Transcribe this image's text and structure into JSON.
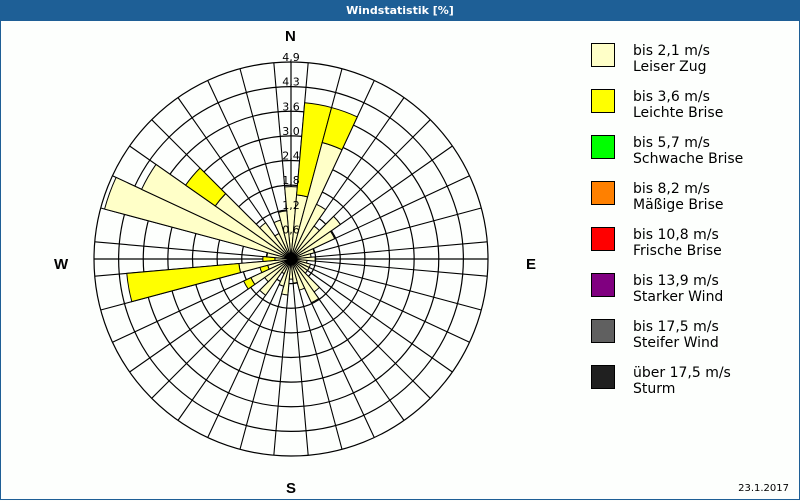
{
  "window": {
    "title": "Windstatistik [%]"
  },
  "compass": {
    "n": "N",
    "e": "E",
    "s": "S",
    "w": "W"
  },
  "date": "23.1.2017",
  "legend": [
    {
      "range": "bis 2,1 m/s",
      "name": "Leiser Zug",
      "color": "#ffffc8"
    },
    {
      "range": "bis 3,6 m/s",
      "name": "Leichte Brise",
      "color": "#ffff00"
    },
    {
      "range": "bis 5,7 m/s",
      "name": "Schwache Brise",
      "color": "#00ff00"
    },
    {
      "range": "bis 8,2 m/s",
      "name": "Mäßige Brise",
      "color": "#ff8000"
    },
    {
      "range": "bis 10,8 m/s",
      "name": "Frische Brise",
      "color": "#ff0000"
    },
    {
      "range": "bis 13,9 m/s",
      "name": "Starker Wind",
      "color": "#800080"
    },
    {
      "range": "bis 17,5 m/s",
      "name": "Steifer Wind",
      "color": "#606060"
    },
    {
      "range": "über 17,5 m/s",
      "name": "Sturm",
      "color": "#202020"
    }
  ],
  "chart_data": {
    "type": "wind-rose",
    "title": "Windstatistik [%]",
    "unit": "%",
    "radial_ticks": [
      "0,6",
      "1,2",
      "1,8",
      "2,4",
      "3,0",
      "3,6",
      "4,3",
      "4,9"
    ],
    "radial_max": 4.9,
    "sector_width_deg": 10,
    "directions_deg": [
      0,
      10,
      20,
      30,
      40,
      50,
      60,
      70,
      80,
      90,
      100,
      110,
      120,
      130,
      140,
      150,
      160,
      170,
      180,
      190,
      200,
      210,
      220,
      230,
      240,
      250,
      260,
      270,
      280,
      290,
      300,
      310,
      320,
      330,
      340,
      350
    ],
    "series": [
      {
        "name": "bis 2,1 m/s Leiser Zug",
        "color": "#ffffc8",
        "values": [
          1.8,
          1.6,
          3.0,
          1.5,
          1.0,
          1.5,
          1.2,
          0.6,
          0.5,
          0.6,
          0.4,
          0.5,
          0.5,
          0.5,
          1.0,
          1.2,
          0.8,
          0.6,
          0.5,
          0.9,
          0.7,
          0.4,
          1.1,
          0.8,
          1.1,
          0.6,
          1.3,
          0.4,
          0.6,
          4.8,
          4.1,
          2.3,
          1.1,
          0.7,
          1.0,
          1.2
        ]
      },
      {
        "name": "bis 3,6 m/s Leichte Brise",
        "color": "#ffff00",
        "values": [
          0,
          2.3,
          0.9,
          0,
          0,
          0,
          0,
          0,
          0,
          0,
          0,
          0,
          0,
          0,
          0,
          0,
          0,
          0,
          0,
          0,
          0,
          0,
          0,
          0,
          0.2,
          0.2,
          2.8,
          0.3,
          0,
          0,
          0,
          0.9,
          0,
          0,
          0,
          0
        ]
      },
      {
        "name": "bis 5,7 m/s Schwache Brise",
        "color": "#00ff00",
        "values": [
          0,
          0,
          0,
          0,
          0,
          0,
          0,
          0,
          0,
          0,
          0,
          0,
          0,
          0,
          0,
          0,
          0,
          0,
          0,
          0,
          0,
          0,
          0,
          0,
          0,
          0,
          0,
          0,
          0,
          0,
          0,
          0,
          0,
          0,
          0,
          0
        ]
      },
      {
        "name": "bis 8,2 m/s Mäßige Brise",
        "color": "#ff8000",
        "values": [
          0,
          0,
          0,
          0,
          0,
          0,
          0,
          0,
          0,
          0,
          0,
          0,
          0,
          0,
          0,
          0,
          0,
          0,
          0,
          0,
          0,
          0,
          0,
          0,
          0,
          0,
          0,
          0,
          0,
          0,
          0,
          0,
          0,
          0,
          0,
          0
        ]
      },
      {
        "name": "bis 10,8 m/s Frische Brise",
        "color": "#ff0000",
        "values": [
          0,
          0,
          0,
          0,
          0,
          0,
          0,
          0,
          0,
          0,
          0,
          0,
          0,
          0,
          0,
          0,
          0,
          0,
          0,
          0,
          0,
          0,
          0,
          0,
          0,
          0,
          0,
          0,
          0,
          0,
          0,
          0,
          0,
          0,
          0,
          0
        ]
      },
      {
        "name": "bis 13,9 m/s Starker Wind",
        "color": "#800080",
        "values": [
          0,
          0,
          0,
          0,
          0,
          0,
          0,
          0,
          0,
          0,
          0,
          0,
          0,
          0,
          0,
          0,
          0,
          0,
          0,
          0,
          0,
          0,
          0,
          0,
          0,
          0,
          0,
          0,
          0,
          0,
          0,
          0,
          0,
          0,
          0,
          0
        ]
      },
      {
        "name": "bis 17,5 m/s Steifer Wind",
        "color": "#606060",
        "values": [
          0,
          0,
          0,
          0,
          0,
          0,
          0,
          0,
          0,
          0,
          0,
          0,
          0,
          0,
          0,
          0,
          0,
          0,
          0,
          0,
          0,
          0,
          0,
          0,
          0,
          0,
          0,
          0,
          0,
          0,
          0,
          0,
          0,
          0,
          0,
          0
        ]
      },
      {
        "name": "über 17,5 m/s Sturm",
        "color": "#202020",
        "values": [
          0,
          0,
          0,
          0,
          0,
          0,
          0,
          0,
          0,
          0,
          0,
          0,
          0,
          0,
          0,
          0,
          0,
          0,
          0,
          0,
          0,
          0,
          0,
          0,
          0,
          0,
          0,
          0,
          0,
          0,
          0,
          0,
          0,
          0,
          0,
          0
        ]
      }
    ],
    "legend_position": "right",
    "grid": true
  }
}
